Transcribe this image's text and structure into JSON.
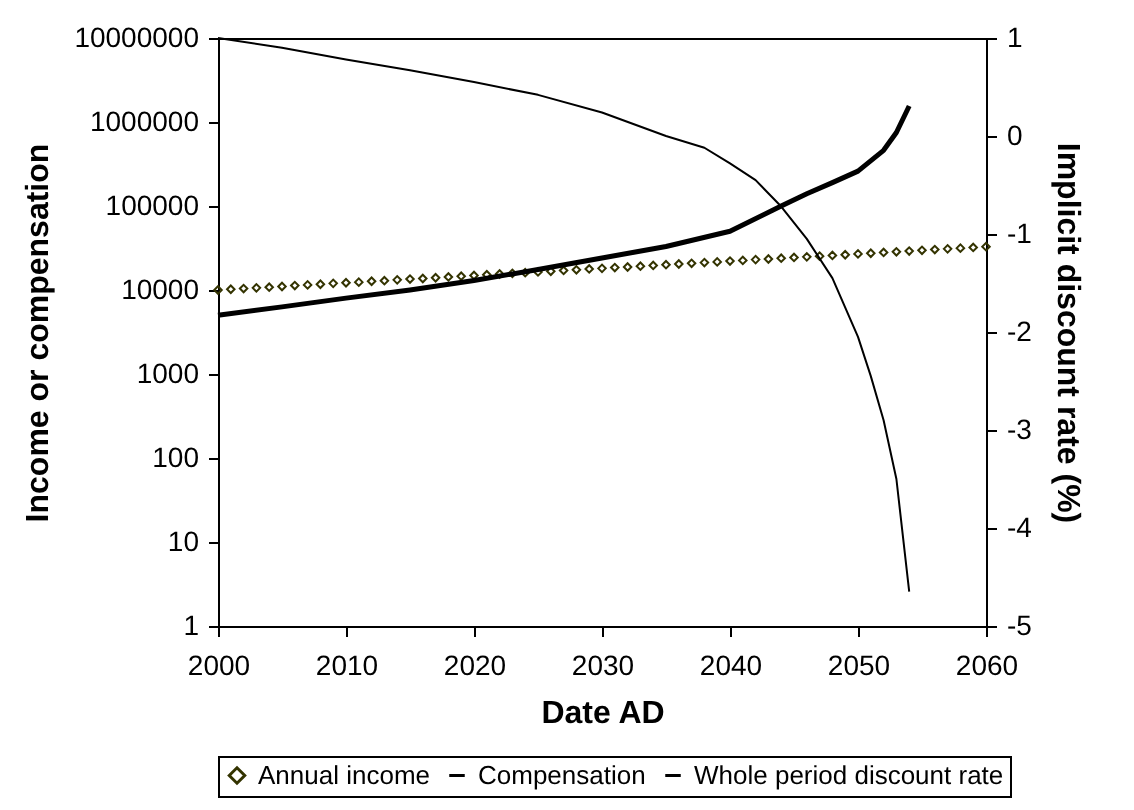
{
  "chart_data": {
    "type": "line",
    "xlabel": "Date AD",
    "ylabel": "Income or compensation",
    "y2label": "Implicit discount rate (%)",
    "xlim": [
      2000,
      2060
    ],
    "xticks": [
      2000,
      2010,
      2020,
      2030,
      2040,
      2050,
      2060
    ],
    "ylim": [
      1,
      10000000
    ],
    "yticks": [
      1,
      10,
      100,
      1000,
      10000,
      100000,
      1000000,
      10000000
    ],
    "y2lim": [
      -5,
      1
    ],
    "y2ticks": [
      -5,
      -4,
      -3,
      -2,
      -1,
      0,
      1
    ],
    "log": true,
    "grid": false,
    "legend": "bottom",
    "line_style": "solid",
    "series": [
      {
        "name": "Annual income",
        "type": "scatter",
        "marker": "diamond",
        "color": "#333300",
        "x": [
          2000,
          2001,
          2002,
          2003,
          2004,
          2005,
          2006,
          2007,
          2008,
          2009,
          2010,
          2011,
          2012,
          2013,
          2014,
          2015,
          2016,
          2017,
          2018,
          2019,
          2020,
          2021,
          2022,
          2023,
          2024,
          2025,
          2026,
          2027,
          2028,
          2029,
          2030,
          2031,
          2032,
          2033,
          2034,
          2035,
          2036,
          2037,
          2038,
          2039,
          2040,
          2041,
          2042,
          2043,
          2044,
          2045,
          2046,
          2047,
          2048,
          2049,
          2050,
          2051,
          2052,
          2053,
          2054,
          2055,
          2056,
          2057,
          2058,
          2059,
          2060
        ],
        "values": [
          10000,
          10200,
          10400,
          10600,
          10800,
          11000,
          11300,
          11500,
          11700,
          12000,
          12200,
          12400,
          12700,
          12900,
          13200,
          13500,
          13700,
          14000,
          14300,
          14600,
          14900,
          15200,
          15500,
          15800,
          16100,
          16400,
          16700,
          17100,
          17400,
          17800,
          18100,
          18500,
          18800,
          19200,
          19600,
          20000,
          20400,
          20800,
          21200,
          21600,
          22100,
          22500,
          23000,
          23400,
          23900,
          24400,
          24800,
          25300,
          25800,
          26300,
          26900,
          27400,
          28000,
          28500,
          29100,
          29700,
          30300,
          30900,
          31500,
          32100,
          32800
        ]
      },
      {
        "name": "Compensation",
        "color": "#000000",
        "x": [
          2000,
          2005,
          2010,
          2015,
          2020,
          2025,
          2030,
          2035,
          2040,
          2044,
          2046,
          2048,
          2050,
          2052,
          2053,
          2054
        ],
        "values": [
          5000,
          6300,
          8000,
          10000,
          13000,
          17500,
          24000,
          33000,
          50000,
          100000,
          140000,
          190000,
          260000,
          460000,
          750000,
          1550000
        ]
      },
      {
        "name": "Whole period discount rate",
        "axis": "y2",
        "color": "#000000",
        "x": [
          2000,
          2005,
          2010,
          2015,
          2020,
          2025,
          2030,
          2035,
          2038,
          2040,
          2042,
          2044,
          2046,
          2048,
          2050,
          2051,
          2052,
          2053,
          2054
        ],
        "values": [
          1,
          0.9,
          0.78,
          0.67,
          0.55,
          0.42,
          0.24,
          0,
          -0.12,
          -0.28,
          -0.45,
          -0.72,
          -1.05,
          -1.45,
          -2.05,
          -2.45,
          -2.9,
          -3.5,
          -4.65
        ]
      }
    ]
  }
}
